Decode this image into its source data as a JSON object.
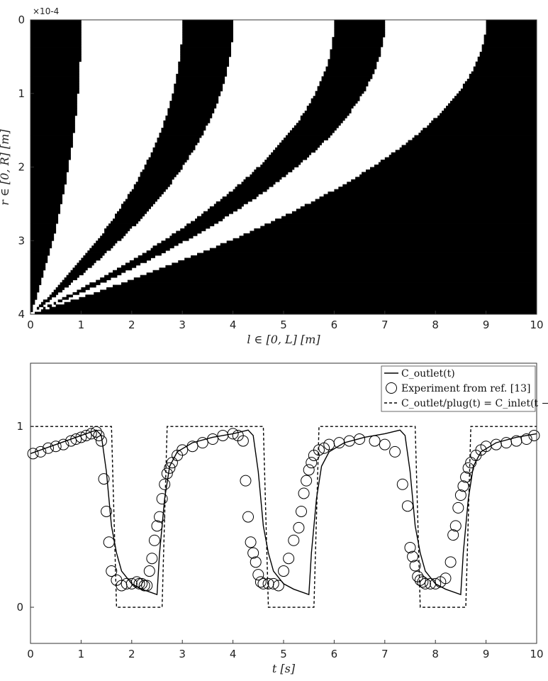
{
  "chart_data": [
    {
      "type": "heatmap",
      "xlabel": "l ∈ [0, L] [m]",
      "ylabel": "r ∈ [0, R] [m]",
      "xlim": [
        0,
        10
      ],
      "ylim": [
        0,
        4
      ],
      "y_reversed": true,
      "x_ticks": [
        "0",
        "1",
        "2",
        "3",
        "4",
        "5",
        "6",
        "7",
        "8",
        "9",
        "10"
      ],
      "y_ticks": [
        "0",
        "1",
        "2",
        "3",
        "4"
      ],
      "y_exponent": "×10-4",
      "binary_colors": {
        "on": "#000000",
        "off": "#ffffff"
      },
      "pattern": "black where the radius-dependent phase of a periodic inlet signal is in its high state; band boundaries are curves x = k·c·(1 − r²/R²)",
      "boundaries_at_r0": [
        1,
        3,
        4,
        6,
        7,
        9
      ],
      "grid": false
    },
    {
      "type": "line",
      "xlabel": "t [s]",
      "xlim": [
        0,
        10
      ],
      "ylim": [
        -0.2,
        1.35
      ],
      "x_ticks": [
        "0",
        "1",
        "2",
        "3",
        "4",
        "5",
        "6",
        "7",
        "8",
        "9",
        "10"
      ],
      "y_ticks": [
        "0",
        "1"
      ],
      "legend_position": "top-right",
      "legend": [
        "C_outlet(t)",
        "Experiment from ref. [13]",
        "C_outlet/plug(t) = C_inlet(t − φ)"
      ],
      "series": [
        {
          "name": "C_outlet(t)",
          "style": "solid",
          "x": [
            0,
            0.5,
            1,
            1.3,
            1.4,
            1.5,
            1.6,
            1.7,
            1.8,
            2,
            2.2,
            2.5,
            2.55,
            2.65,
            2.75,
            2.9,
            3.2,
            3.6,
            4,
            4.3,
            4.4,
            4.5,
            4.6,
            4.7,
            4.8,
            5,
            5.2,
            5.5,
            5.55,
            5.65,
            5.75,
            5.9,
            6.2,
            6.6,
            7,
            7.3,
            7.4,
            7.5,
            7.6,
            7.7,
            7.8,
            8,
            8.2,
            8.5,
            8.55,
            8.65,
            8.75,
            8.9,
            9.2,
            9.6,
            10
          ],
          "y": [
            0.85,
            0.9,
            0.95,
            0.98,
            0.95,
            0.75,
            0.45,
            0.3,
            0.2,
            0.13,
            0.1,
            0.07,
            0.3,
            0.6,
            0.78,
            0.86,
            0.91,
            0.94,
            0.96,
            0.98,
            0.95,
            0.75,
            0.45,
            0.3,
            0.2,
            0.13,
            0.1,
            0.07,
            0.3,
            0.6,
            0.78,
            0.86,
            0.91,
            0.94,
            0.96,
            0.98,
            0.95,
            0.75,
            0.45,
            0.3,
            0.2,
            0.13,
            0.1,
            0.07,
            0.3,
            0.6,
            0.78,
            0.86,
            0.91,
            0.94,
            0.96
          ]
        },
        {
          "name": "Experiment from ref. [13]",
          "style": "circles",
          "x": [
            0.05,
            0.2,
            0.35,
            0.5,
            0.65,
            0.8,
            0.9,
            1.0,
            1.1,
            1.2,
            1.3,
            1.35,
            1.4,
            1.45,
            1.5,
            1.55,
            1.6,
            1.7,
            1.8,
            1.9,
            2.0,
            2.1,
            2.15,
            2.2,
            2.25,
            2.3,
            2.35,
            2.4,
            2.45,
            2.5,
            2.55,
            2.6,
            2.65,
            2.7,
            2.75,
            2.8,
            2.9,
            3.0,
            3.2,
            3.4,
            3.6,
            3.8,
            4.0,
            4.1,
            4.2,
            4.25,
            4.3,
            4.35,
            4.4,
            4.45,
            4.5,
            4.55,
            4.6,
            4.7,
            4.8,
            4.9,
            5.0,
            5.1,
            5.2,
            5.3,
            5.35,
            5.4,
            5.45,
            5.5,
            5.55,
            5.6,
            5.7,
            5.8,
            5.9,
            6.1,
            6.3,
            6.5,
            6.8,
            7.0,
            7.2,
            7.35,
            7.45,
            7.5,
            7.55,
            7.6,
            7.65,
            7.7,
            7.75,
            7.8,
            7.9,
            8.0,
            8.1,
            8.2,
            8.3,
            8.35,
            8.4,
            8.45,
            8.5,
            8.55,
            8.6,
            8.65,
            8.7,
            8.8,
            8.9,
            9.0,
            9.2,
            9.4,
            9.6,
            9.8,
            9.95
          ],
          "y": [
            0.85,
            0.86,
            0.88,
            0.89,
            0.9,
            0.92,
            0.93,
            0.94,
            0.95,
            0.96,
            0.97,
            0.95,
            0.92,
            0.71,
            0.53,
            0.36,
            0.2,
            0.15,
            0.12,
            0.13,
            0.13,
            0.14,
            0.13,
            0.13,
            0.12,
            0.12,
            0.2,
            0.27,
            0.37,
            0.45,
            0.5,
            0.6,
            0.68,
            0.74,
            0.77,
            0.8,
            0.84,
            0.87,
            0.89,
            0.91,
            0.93,
            0.95,
            0.96,
            0.95,
            0.92,
            0.7,
            0.5,
            0.36,
            0.3,
            0.25,
            0.18,
            0.14,
            0.13,
            0.13,
            0.13,
            0.12,
            0.2,
            0.27,
            0.37,
            0.44,
            0.53,
            0.63,
            0.7,
            0.76,
            0.8,
            0.84,
            0.87,
            0.88,
            0.9,
            0.91,
            0.92,
            0.93,
            0.92,
            0.9,
            0.86,
            0.68,
            0.56,
            0.33,
            0.28,
            0.23,
            0.17,
            0.15,
            0.14,
            0.13,
            0.13,
            0.13,
            0.14,
            0.16,
            0.25,
            0.4,
            0.45,
            0.55,
            0.62,
            0.67,
            0.72,
            0.77,
            0.8,
            0.84,
            0.87,
            0.89,
            0.9,
            0.91,
            0.92,
            0.93,
            0.95
          ]
        },
        {
          "name": "C_outlet/plug(t) = C_inlet(t − φ)",
          "style": "dashed",
          "x": [
            0,
            1.6,
            1.7,
            2.6,
            2.7,
            4.6,
            4.7,
            5.6,
            5.7,
            7.6,
            7.7,
            8.6,
            8.7,
            10
          ],
          "y": [
            1,
            1,
            0,
            0,
            1,
            1,
            0,
            0,
            1,
            1,
            0,
            0,
            1,
            1
          ]
        }
      ]
    }
  ]
}
